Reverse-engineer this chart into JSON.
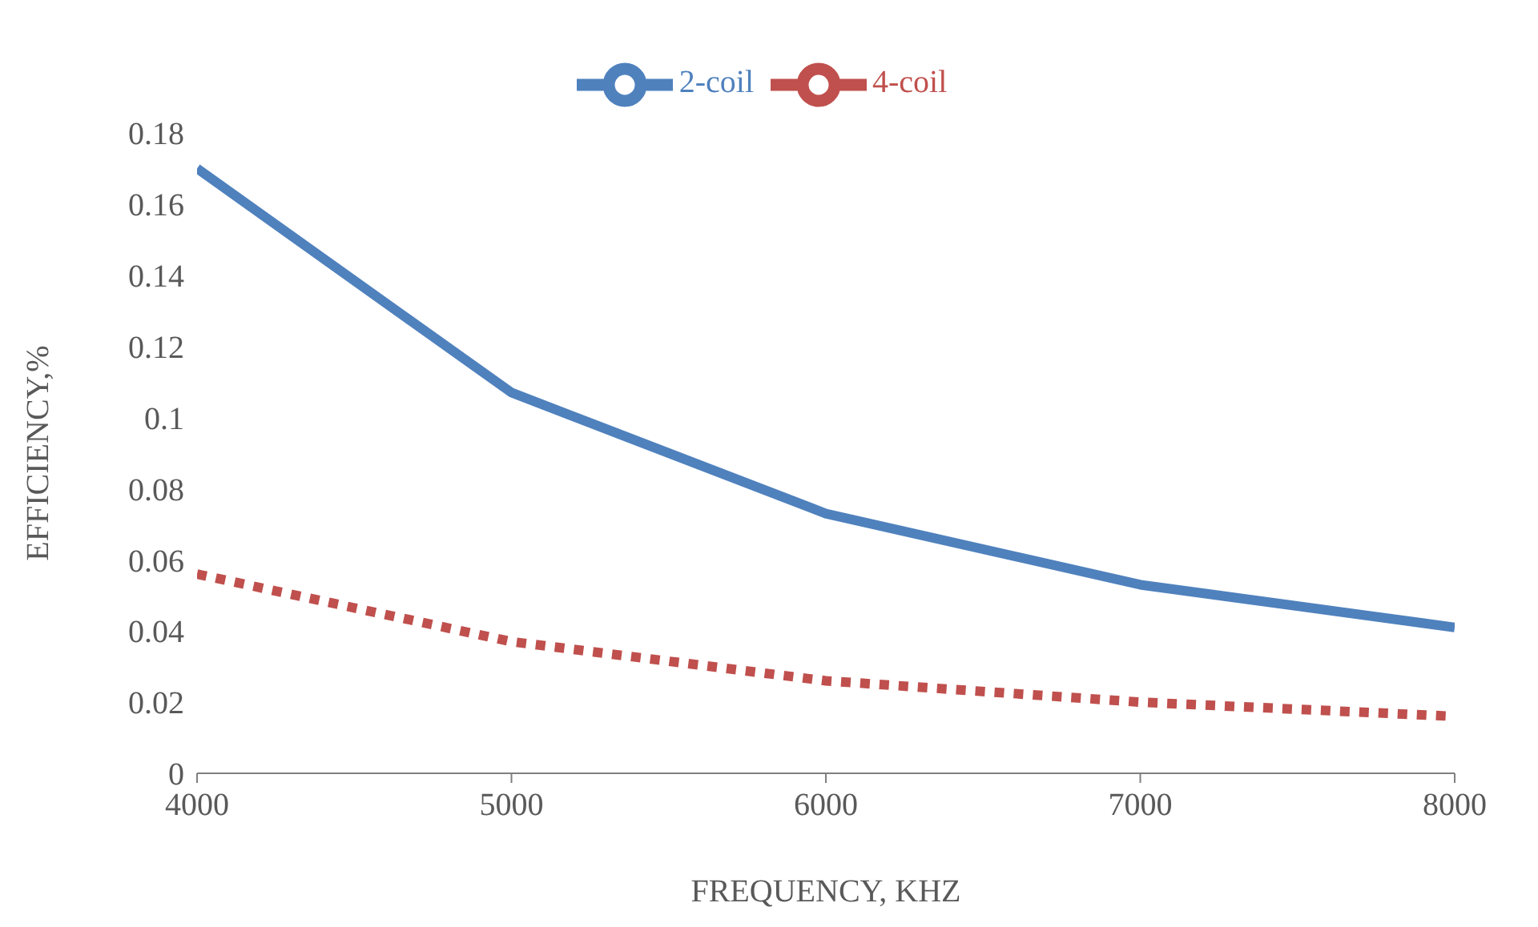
{
  "chart_data": {
    "type": "line",
    "xlabel": "FREQUENCY, KHZ",
    "ylabel": "EFFICIENCY,%",
    "x": [
      4000,
      5000,
      6000,
      7000,
      8000
    ],
    "series": [
      {
        "name": "2-coil",
        "color": "#4f81bd",
        "line_style": "solid",
        "values": [
          0.17,
          0.107,
          0.073,
          0.053,
          0.041
        ]
      },
      {
        "name": "4-coil",
        "color": "#c0504d",
        "line_style": "dotted",
        "values": [
          0.056,
          0.037,
          0.026,
          0.02,
          0.016
        ]
      }
    ],
    "xlim": [
      4000,
      8000
    ],
    "xticks": [
      4000,
      5000,
      6000,
      7000,
      8000
    ],
    "ylim": [
      0,
      0.18
    ],
    "yticks": [
      0,
      0.02,
      0.04,
      0.06,
      0.08,
      0.1,
      0.12,
      0.14,
      0.16,
      0.18
    ],
    "grid": false,
    "legend": "top",
    "marker": "none"
  }
}
